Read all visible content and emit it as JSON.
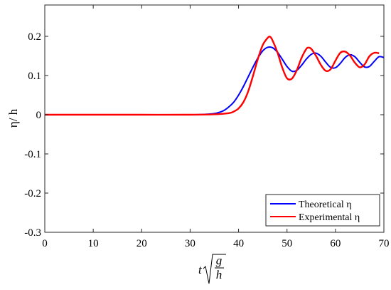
{
  "chart_data": {
    "type": "line",
    "title": "",
    "xlabel": "t√(g/h)",
    "xlabel_parts": {
      "var": "t",
      "num": "g",
      "den": "h"
    },
    "ylabel": "η/ h",
    "xlim": [
      0,
      70
    ],
    "ylim": [
      -0.3,
      0.28
    ],
    "x_ticks": [
      0,
      10,
      20,
      30,
      40,
      50,
      60,
      70
    ],
    "y_ticks": [
      -0.3,
      -0.2,
      -0.1,
      0,
      0.1,
      0.2
    ],
    "x_tick_labels": [
      "0",
      "10",
      "20",
      "30",
      "40",
      "50",
      "60",
      "70"
    ],
    "y_tick_labels": [
      "-0.3",
      "-0.2",
      "-0.1",
      "0",
      "0.1",
      "0.2"
    ],
    "grid": false,
    "legend_position": "bottom-right",
    "series": [
      {
        "name": "Theoretical η",
        "color": "#0000ff",
        "x": [
          0,
          10,
          20,
          30,
          33,
          35,
          36,
          37,
          38,
          39,
          40,
          41,
          42,
          43,
          44,
          45,
          46,
          47,
          48,
          49,
          50,
          51,
          52,
          53,
          54,
          55,
          56,
          57,
          58,
          59,
          60,
          61,
          62,
          63,
          64,
          65,
          66,
          67,
          68,
          69,
          70
        ],
        "y": [
          0,
          0,
          0,
          0,
          0.001,
          0.003,
          0.006,
          0.011,
          0.02,
          0.032,
          0.05,
          0.072,
          0.097,
          0.122,
          0.145,
          0.163,
          0.172,
          0.171,
          0.16,
          0.142,
          0.123,
          0.111,
          0.113,
          0.126,
          0.142,
          0.154,
          0.157,
          0.149,
          0.134,
          0.121,
          0.12,
          0.131,
          0.146,
          0.153,
          0.148,
          0.134,
          0.122,
          0.123,
          0.136,
          0.148,
          0.146
        ]
      },
      {
        "name": "Experimental η",
        "color": "#ff0000",
        "x": [
          0,
          10,
          20,
          30,
          35,
          38,
          39,
          40,
          41,
          42,
          43,
          44,
          45,
          46,
          46.5,
          47,
          48,
          49,
          50,
          51,
          52,
          53,
          54,
          54.5,
          55,
          56,
          57,
          58,
          59,
          60,
          61,
          62,
          63,
          64,
          65,
          66,
          67,
          68,
          69
        ],
        "y": [
          0,
          0,
          0,
          0,
          0.001,
          0.004,
          0.008,
          0.016,
          0.032,
          0.06,
          0.1,
          0.143,
          0.178,
          0.196,
          0.199,
          0.19,
          0.16,
          0.121,
          0.093,
          0.092,
          0.113,
          0.145,
          0.168,
          0.171,
          0.168,
          0.15,
          0.127,
          0.112,
          0.116,
          0.138,
          0.158,
          0.161,
          0.151,
          0.133,
          0.121,
          0.128,
          0.149,
          0.158,
          0.157
        ]
      }
    ]
  }
}
